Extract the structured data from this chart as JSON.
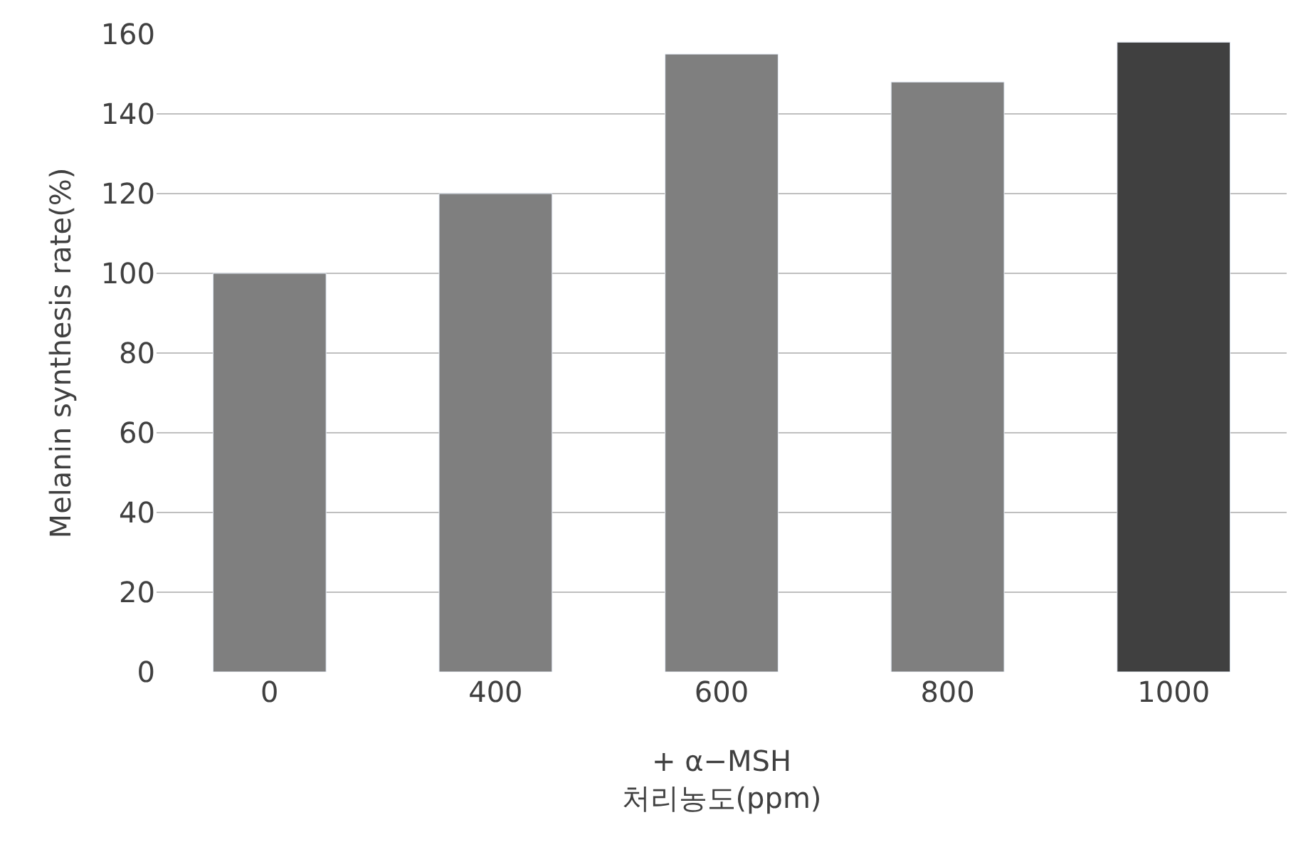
{
  "chart_data": {
    "type": "bar",
    "categories": [
      "0",
      "400",
      "600",
      "800",
      "1000"
    ],
    "values": [
      100,
      120,
      155,
      148,
      158
    ],
    "colors": [
      "#7f7f7f",
      "#7f7f7f",
      "#7f7f7f",
      "#7f7f7f",
      "#404040"
    ],
    "xlabel": "+ α−MSH\n처리농도(ppm)",
    "ylabel": "Melanin synthesis rate(%)",
    "ylim": [
      0,
      160
    ],
    "yticks": [
      0,
      20,
      40,
      60,
      80,
      100,
      120,
      140,
      160
    ],
    "grid": "y"
  }
}
